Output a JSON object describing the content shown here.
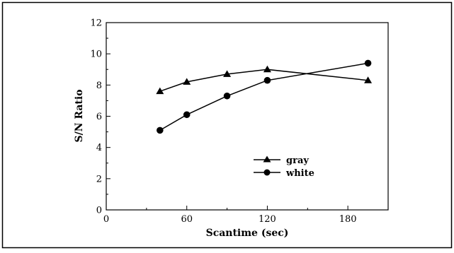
{
  "chart_data": {
    "type": "line",
    "title": "",
    "xlabel": "Scantime (sec)",
    "ylabel": "S/N Ratio",
    "xlim": [
      0,
      210
    ],
    "ylim": [
      0,
      12
    ],
    "xticks": [
      0,
      60,
      120,
      180
    ],
    "yticks": [
      0,
      2,
      4,
      6,
      8,
      10,
      12
    ],
    "grid": false,
    "legend_position": "lower-right",
    "series": [
      {
        "name": "gray",
        "marker": "triangle",
        "x": [
          40,
          60,
          90,
          120,
          195
        ],
        "y": [
          7.6,
          8.2,
          8.7,
          9.0,
          8.3
        ]
      },
      {
        "name": "white",
        "marker": "circle",
        "x": [
          40,
          60,
          90,
          120,
          195
        ],
        "y": [
          5.1,
          6.1,
          7.3,
          8.3,
          9.4
        ]
      }
    ]
  },
  "colors": {
    "ink": "#000000",
    "background": "#ffffff"
  }
}
